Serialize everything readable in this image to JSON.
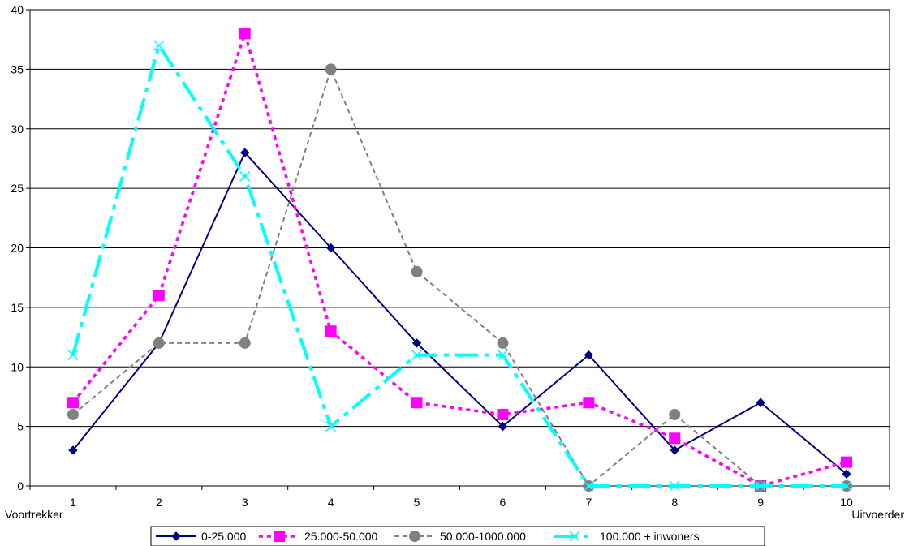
{
  "chart_data": {
    "type": "line",
    "categories": [
      "1",
      "2",
      "3",
      "4",
      "5",
      "6",
      "7",
      "8",
      "9",
      "10"
    ],
    "x_end_labels": {
      "left": "Voortrekker",
      "right": "Uitvoerder"
    },
    "ylim": [
      0,
      40
    ],
    "yticks": [
      0,
      5,
      10,
      15,
      20,
      25,
      30,
      35,
      40
    ],
    "grid": true,
    "legend": "bottom",
    "series": [
      {
        "name": "0-25.000",
        "values": [
          3,
          12,
          28,
          20,
          12,
          5,
          11,
          3,
          7,
          1
        ],
        "color": "#000080",
        "marker": "diamond",
        "dash": "solid"
      },
      {
        "name": "25.000-50.000",
        "values": [
          7,
          16,
          38,
          13,
          7,
          6,
          7,
          4,
          0,
          2
        ],
        "color": "#FF00FF",
        "marker": "square",
        "dash": "dot"
      },
      {
        "name": "50.000-1000.000",
        "values": [
          6,
          12,
          12,
          35,
          18,
          12,
          0,
          6,
          0,
          0
        ],
        "color": "#808080",
        "marker": "circle",
        "dash": "dash-small"
      },
      {
        "name": "100.000 + inwoners",
        "values": [
          11,
          37,
          26,
          5,
          11,
          11,
          0,
          0,
          0,
          0
        ],
        "color": "#00FFFF",
        "marker": "x",
        "dash": "dash-dot"
      }
    ]
  }
}
